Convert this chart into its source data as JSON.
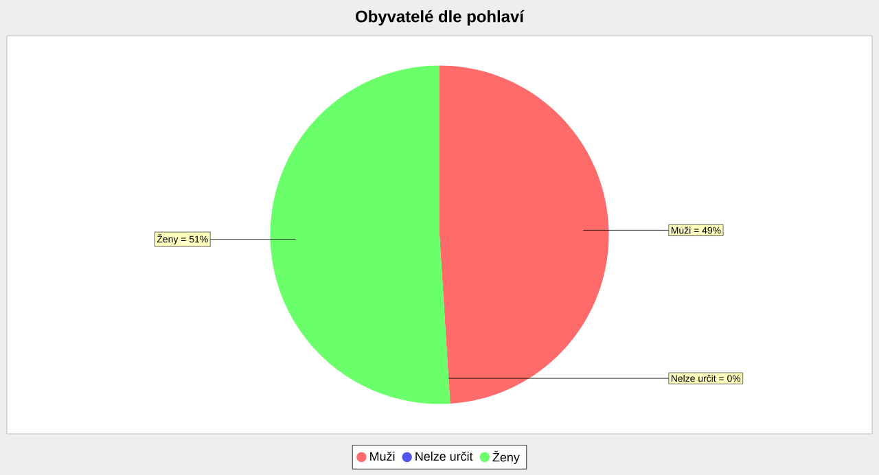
{
  "chart_data": {
    "type": "pie",
    "title": "Obyvatelé dle pohlaví",
    "categories": [
      "Muži",
      "Nelze určit",
      "Ženy"
    ],
    "values": [
      49,
      0,
      51
    ],
    "colors": [
      "#ff6b6b",
      "#5555ee",
      "#6bff6b"
    ],
    "value_labels": [
      "Muži = 49%",
      "Nelze určit = 0%",
      "Ženy = 51%"
    ],
    "legend": "bottom"
  }
}
